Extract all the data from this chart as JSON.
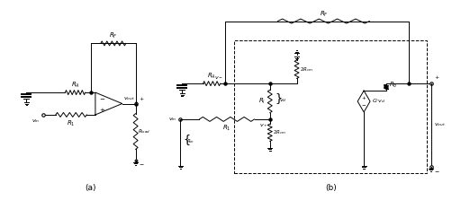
{
  "bg_color": "#ffffff",
  "line_color": "#000000",
  "fig_width": 5.12,
  "fig_height": 2.33,
  "dpi": 100,
  "label_a": "(a)",
  "label_b": "(b)"
}
